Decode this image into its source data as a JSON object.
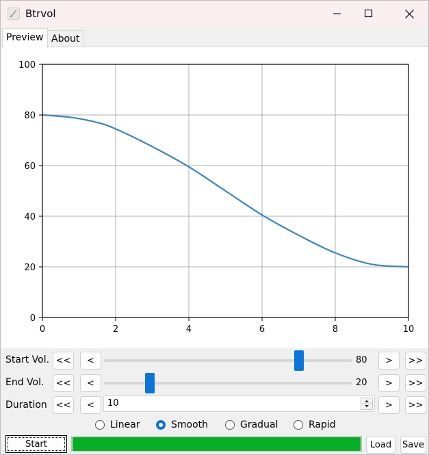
{
  "window": {
    "title": "Btrvol",
    "controls": [
      "minimize-icon",
      "maximize-icon",
      "close-icon"
    ]
  },
  "tabs": [
    {
      "label": "Preview",
      "active": true
    },
    {
      "label": "About",
      "active": false
    }
  ],
  "chart_data": {
    "type": "line",
    "title": "",
    "xlabel": "",
    "ylabel": "",
    "xlim": [
      0,
      10
    ],
    "ylim": [
      0,
      100
    ],
    "x_ticks": [
      0,
      2,
      4,
      6,
      8,
      10
    ],
    "y_ticks": [
      0,
      20,
      40,
      60,
      80,
      100
    ],
    "x_tick_labels": [
      "0",
      "2",
      "4",
      "6",
      "8",
      "10"
    ],
    "y_tick_labels": [
      "0",
      "20",
      "40",
      "60",
      "80",
      "100"
    ],
    "grid": true,
    "series": [
      {
        "color": "#3a84c4",
        "x": [
          0,
          0.8,
          1.5,
          2,
          3,
          4,
          5,
          6,
          7,
          8,
          9,
          10
        ],
        "y": [
          80,
          79,
          77,
          74.5,
          67.5,
          59.5,
          50,
          40.5,
          32.5,
          25.5,
          21,
          20
        ]
      }
    ]
  },
  "controls": {
    "start_vol": {
      "label": "Start Vol.",
      "fast_back": "<<",
      "back": "<",
      "value": "80",
      "level": 0.8,
      "fwd": ">",
      "fast_fwd": ">>"
    },
    "end_vol": {
      "label": "End Vol.",
      "fast_back": "<<",
      "back": "<",
      "value": "20",
      "level": 0.2,
      "fwd": ">",
      "fast_fwd": ">>"
    },
    "duration": {
      "label": "Duration",
      "fast_back": "<<",
      "back": "<",
      "value": "10",
      "fwd": ">",
      "fast_fwd": ">>"
    }
  },
  "curve_options": [
    {
      "label": "Linear",
      "checked": false
    },
    {
      "label": "Smooth",
      "checked": true
    },
    {
      "label": "Gradual",
      "checked": false
    },
    {
      "label": "Rapid",
      "checked": false
    }
  ],
  "bottom": {
    "start_label": "Start",
    "progress": 1.0,
    "progress_color": "#06b025",
    "load_label": "Load",
    "save_label": "Save"
  },
  "colors": {
    "accent": "#0a74d9",
    "titlebar": "#f9eef0"
  }
}
